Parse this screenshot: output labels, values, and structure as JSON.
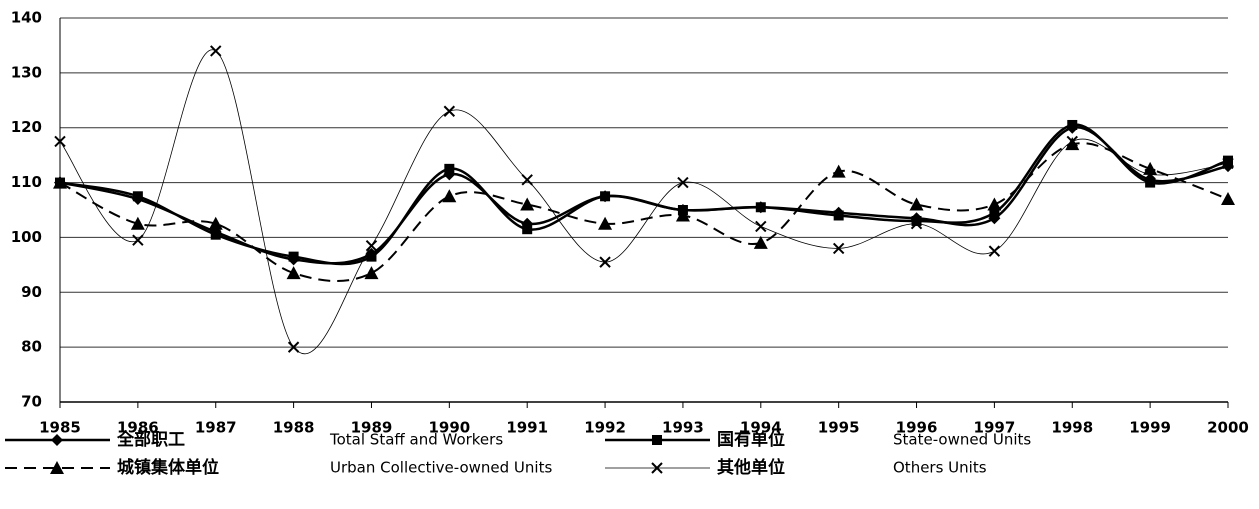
{
  "chart_data": {
    "type": "line",
    "categories": [
      "1985",
      "1986",
      "1987",
      "1988",
      "1989",
      "1990",
      "1991",
      "1992",
      "1993",
      "1994",
      "1995",
      "1996",
      "1997",
      "1998",
      "1999",
      "2000"
    ],
    "ylim": [
      70,
      140
    ],
    "yticks": [
      70,
      80,
      90,
      100,
      110,
      120,
      130,
      140
    ],
    "grid": true,
    "series": [
      {
        "name": "全部职工",
        "name_en": "Total Staff and Workers",
        "color": "#000000",
        "line_style": "solid",
        "marker": "diamond",
        "values": [
          110,
          107,
          101,
          96,
          97,
          111.5,
          102.5,
          107.5,
          105,
          105.5,
          104.5,
          103.5,
          103.5,
          120,
          110.5,
          113
        ]
      },
      {
        "name": "国有单位",
        "name_en": "State-owned Units",
        "color": "#000000",
        "line_style": "solid",
        "marker": "square",
        "values": [
          110,
          107.5,
          100.5,
          96.5,
          96.5,
          112.5,
          101.5,
          107.5,
          105,
          105.5,
          104,
          103,
          104.5,
          120.5,
          110,
          114
        ]
      },
      {
        "name": "城镇集体单位",
        "name_en": "Urban Collective-owned Units",
        "color": "#000000",
        "line_style": "dashed",
        "marker": "triangle",
        "values": [
          110,
          102.5,
          102.5,
          93.5,
          93.5,
          107.5,
          106,
          102.5,
          104,
          99,
          112,
          106,
          106,
          117,
          112.5,
          107
        ]
      },
      {
        "name": "其他单位",
        "name_en": "Others Units",
        "color": "#000000",
        "line_style": "thin",
        "marker": "x",
        "values": [
          117.5,
          99.5,
          134,
          80,
          98.5,
          123,
          110.5,
          95.5,
          110,
          102,
          98,
          102.5,
          97.5,
          117.5,
          111.5,
          113.5
        ]
      }
    ]
  }
}
